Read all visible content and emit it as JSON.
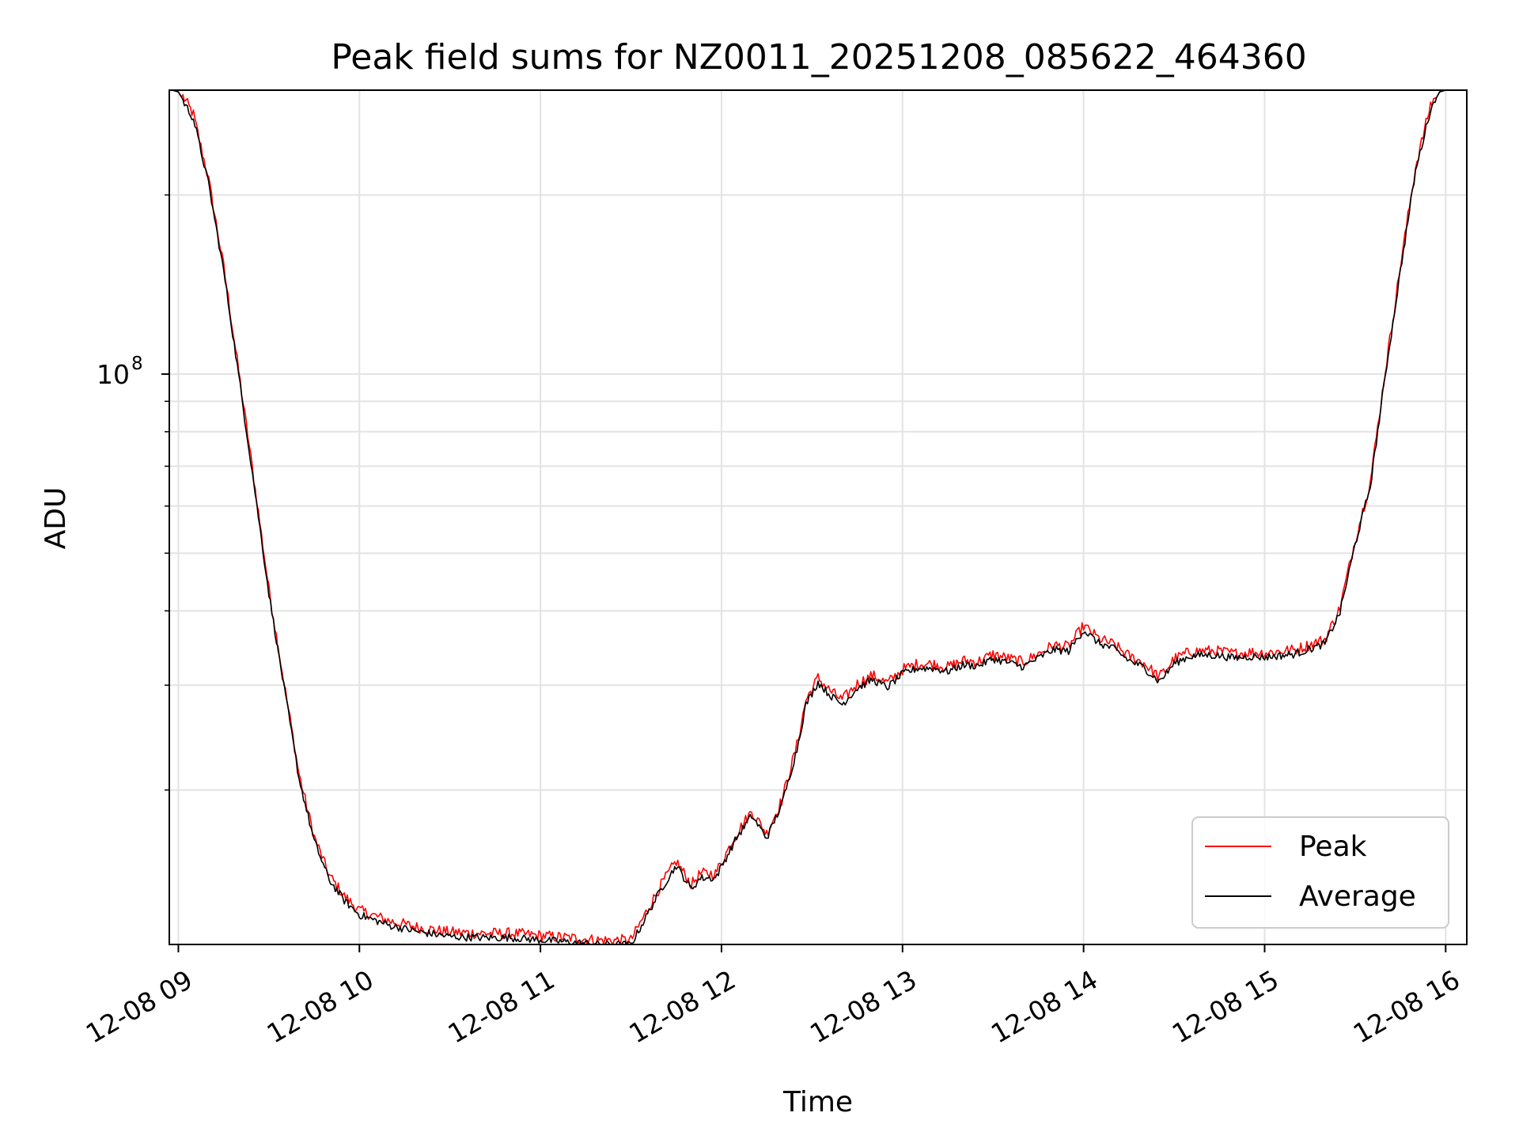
{
  "chart_data": {
    "type": "line",
    "title": "Peak field sums for NZ0011_20251208_085622_464360",
    "xlabel": "Time",
    "ylabel": "ADU",
    "x_type": "datetime",
    "xlim": [
      "2025-12-08 08:57",
      "2025-12-08 16:07"
    ],
    "ylim": [
      11000000,
      300000000
    ],
    "y_scale": "log",
    "y_major_ticks": [
      {
        "value": 100000000,
        "label_base": "10",
        "label_exp": "8"
      }
    ],
    "y_minor_ticks": [
      20000000,
      30000000,
      40000000,
      50000000,
      60000000,
      70000000,
      80000000,
      90000000,
      200000000
    ],
    "x_ticks": [
      {
        "value": "2025-12-08 09:00",
        "label": "12-08 09"
      },
      {
        "value": "2025-12-08 10:00",
        "label": "12-08 10"
      },
      {
        "value": "2025-12-08 11:00",
        "label": "12-08 11"
      },
      {
        "value": "2025-12-08 12:00",
        "label": "12-08 12"
      },
      {
        "value": "2025-12-08 13:00",
        "label": "12-08 13"
      },
      {
        "value": "2025-12-08 14:00",
        "label": "12-08 14"
      },
      {
        "value": "2025-12-08 15:00",
        "label": "12-08 15"
      },
      {
        "value": "2025-12-08 16:00",
        "label": "12-08 16"
      }
    ],
    "grid": true,
    "legend_position": "lower-right",
    "series": [
      {
        "name": "Peak",
        "color": "#ff0000",
        "noise": 0.022
      },
      {
        "name": "Average",
        "color": "#000000",
        "noise": 0.015
      }
    ],
    "x": [
      "08:58",
      "09:00",
      "09:05",
      "09:10",
      "09:15",
      "09:20",
      "09:25",
      "09:30",
      "09:35",
      "09:40",
      "09:45",
      "09:50",
      "09:55",
      "10:00",
      "10:10",
      "10:20",
      "10:30",
      "10:40",
      "10:50",
      "11:00",
      "11:10",
      "11:20",
      "11:30",
      "11:35",
      "11:40",
      "11:45",
      "11:50",
      "11:53",
      "11:58",
      "12:05",
      "12:10",
      "12:15",
      "12:20",
      "12:25",
      "12:28",
      "12:32",
      "12:36",
      "12:40",
      "12:45",
      "12:50",
      "12:55",
      "13:00",
      "13:05",
      "13:10",
      "13:15",
      "13:20",
      "13:25",
      "13:30",
      "13:40",
      "13:50",
      "13:55",
      "14:00",
      "14:05",
      "14:10",
      "14:15",
      "14:20",
      "14:25",
      "14:28",
      "14:30",
      "14:35",
      "14:40",
      "14:45",
      "14:50",
      "14:55",
      "15:00",
      "15:10",
      "15:20",
      "15:25",
      "15:30",
      "15:35",
      "15:40",
      "15:45",
      "15:50",
      "15:55",
      "15:58",
      "16:00",
      "16:03",
      "16:06"
    ],
    "y": [
      300000000,
      298000000,
      270000000,
      210000000,
      150000000,
      100000000,
      66000000,
      43000000,
      30000000,
      21000000,
      16500000,
      14200000,
      13100000,
      12400000,
      11900000,
      11600000,
      11400000,
      11350000,
      11350000,
      11250000,
      11150000,
      11050000,
      11050000,
      12300000,
      13700000,
      15000000,
      13700000,
      14300000,
      14300000,
      16700000,
      18200000,
      16700000,
      19000000,
      23500000,
      28000000,
      30500000,
      29000000,
      28000000,
      29800000,
      30800000,
      29900000,
      31500000,
      32200000,
      32200000,
      31800000,
      32600000,
      32500000,
      33400000,
      32400000,
      34600000,
      34400000,
      37300000,
      35500000,
      34700000,
      33200000,
      32300000,
      30600000,
      31800000,
      32800000,
      33700000,
      33900000,
      33800000,
      33500000,
      33700000,
      33600000,
      34000000,
      35400000,
      40000000,
      52000000,
      65000000,
      100000000,
      150000000,
      220000000,
      280000000,
      298000000,
      300000000,
      300000000,
      300000000
    ]
  }
}
